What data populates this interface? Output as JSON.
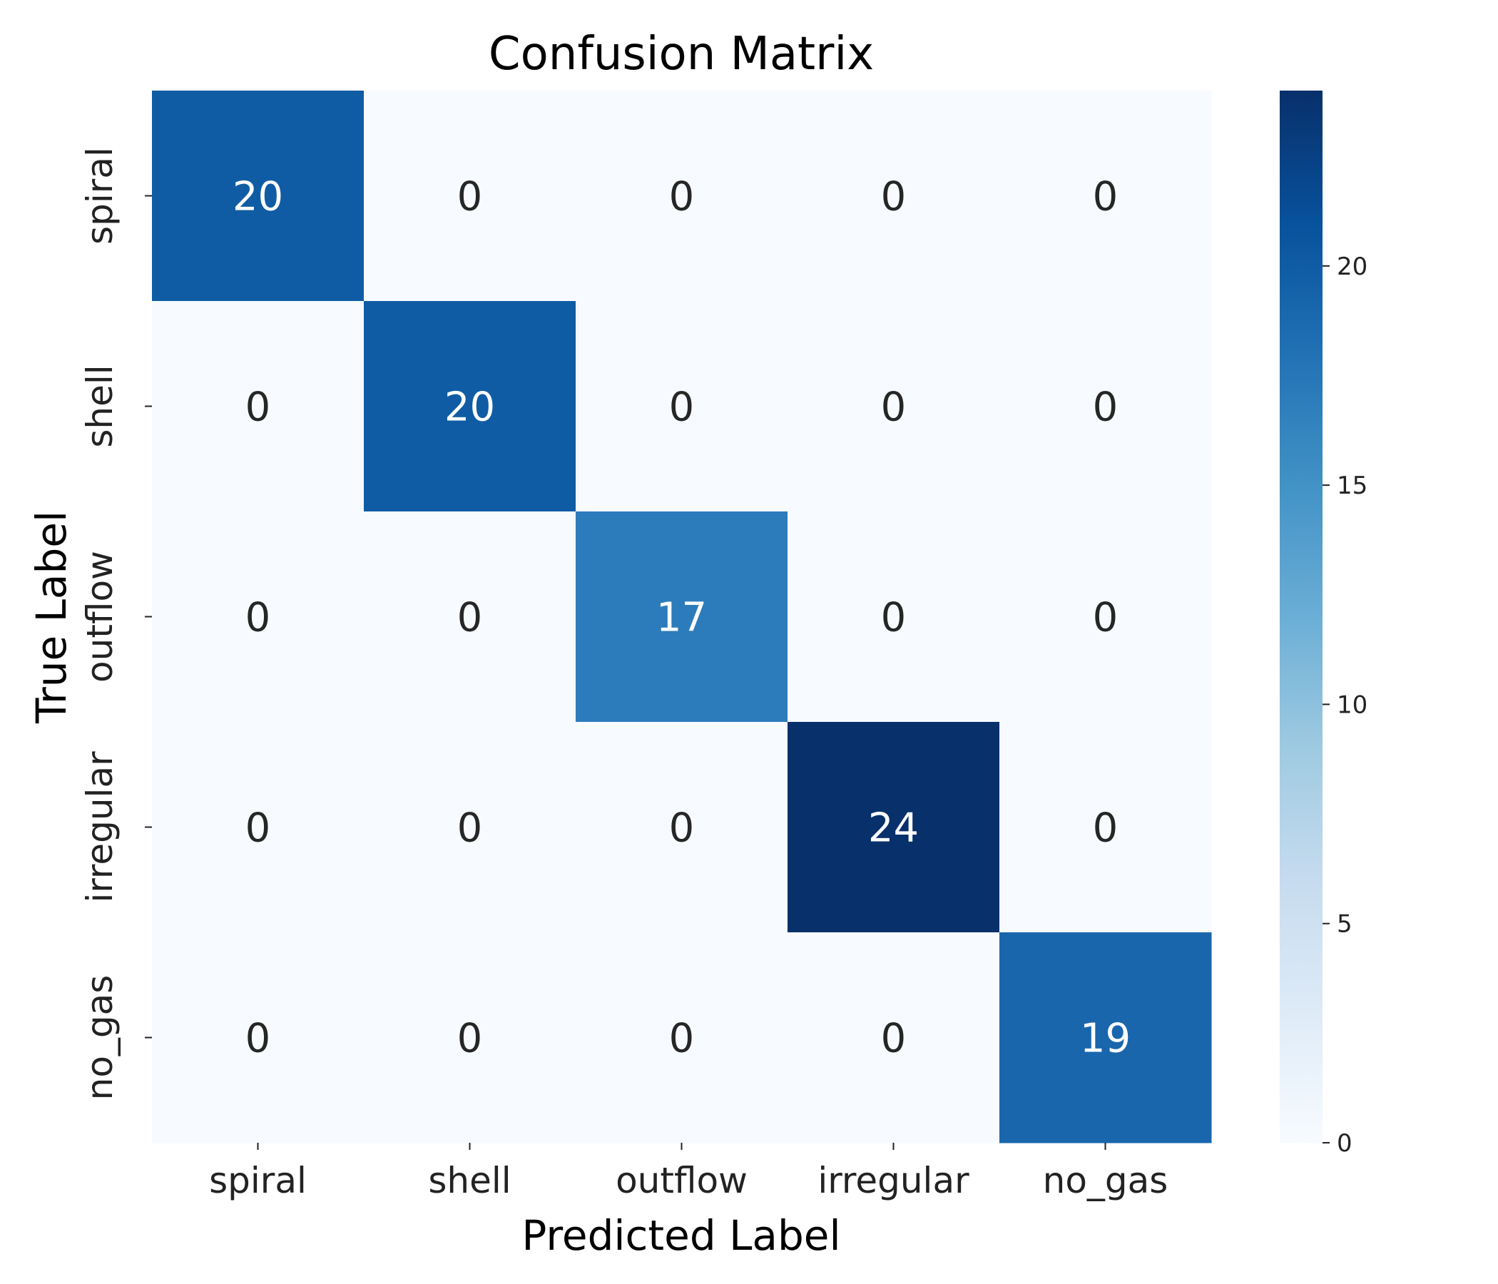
{
  "chart_data": {
    "type": "heatmap",
    "title": "Confusion Matrix",
    "xlabel": "Predicted Label",
    "ylabel": "True Label",
    "x_categories": [
      "spiral",
      "shell",
      "outflow",
      "irregular",
      "no_gas"
    ],
    "y_categories": [
      "spiral",
      "shell",
      "outflow",
      "irregular",
      "no_gas"
    ],
    "values": [
      [
        20,
        0,
        0,
        0,
        0
      ],
      [
        0,
        20,
        0,
        0,
        0
      ],
      [
        0,
        0,
        17,
        0,
        0
      ],
      [
        0,
        0,
        0,
        24,
        0
      ],
      [
        0,
        0,
        0,
        0,
        19
      ]
    ],
    "colorbar": {
      "cmap": "Blues",
      "range": [
        0,
        24
      ],
      "ticks": [
        0,
        5,
        10,
        15,
        20
      ]
    },
    "text_colors": {
      "light": "#ffffff",
      "dark": "#262626"
    }
  }
}
